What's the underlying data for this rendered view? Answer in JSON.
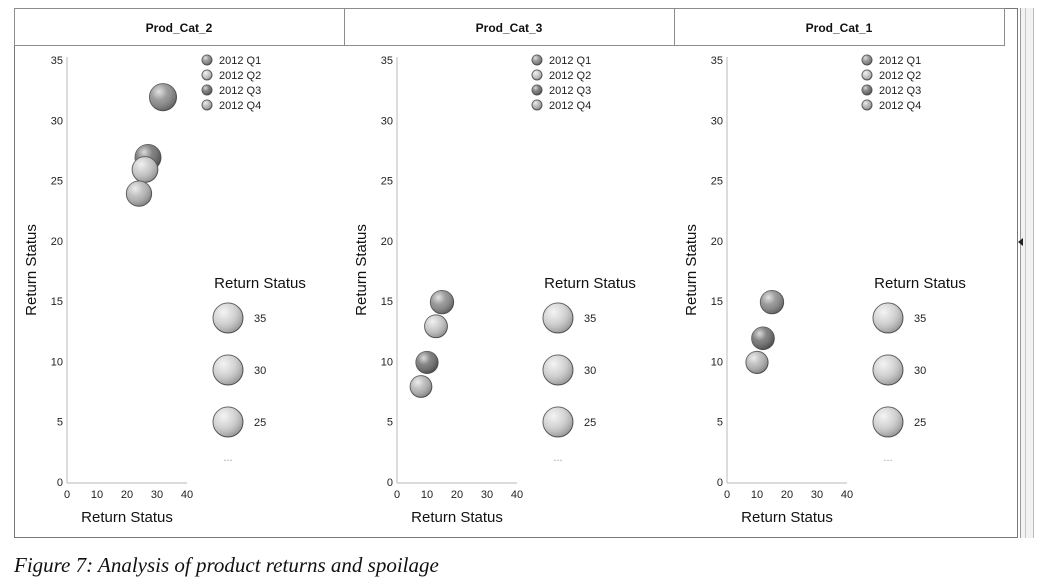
{
  "caption": "Figure 7: Analysis of product returns and spoilage",
  "colors": {
    "q1": "#8a8a8a",
    "q2": "#c6c6c6",
    "q3": "#6e6e6e",
    "q4": "#b4b4b4",
    "size_legend": "#d2d2d2"
  },
  "chart_data": [
    {
      "type": "scatter",
      "panel_title": "Prod_Cat_2",
      "xlabel": "Return Status",
      "ylabel": "Return Status",
      "xlim": [
        0,
        40
      ],
      "ylim": [
        0,
        35
      ],
      "x_ticks": [
        "0",
        "10",
        "20",
        "30",
        "40"
      ],
      "y_ticks": [
        "0",
        "5",
        "10",
        "15",
        "20",
        "25",
        "30",
        "35"
      ],
      "legend": [
        "2012 Q1",
        "2012 Q2",
        "2012 Q3",
        "2012 Q4"
      ],
      "size_legend": {
        "title": "Return Status",
        "values": [
          "35",
          "30",
          "25"
        ],
        "more": "..."
      },
      "series": [
        {
          "name": "2012 Q1",
          "points": [
            {
              "x": 32,
              "y": 32,
              "size": 32
            }
          ]
        },
        {
          "name": "2012 Q2",
          "points": [
            {
              "x": 26,
              "y": 26,
              "size": 26
            }
          ]
        },
        {
          "name": "2012 Q3",
          "points": [
            {
              "x": 27,
              "y": 27,
              "size": 27
            }
          ]
        },
        {
          "name": "2012 Q4",
          "points": [
            {
              "x": 24,
              "y": 24,
              "size": 24
            }
          ]
        }
      ]
    },
    {
      "type": "scatter",
      "panel_title": "Prod_Cat_3",
      "xlabel": "Return Status",
      "ylabel": "Return Status",
      "xlim": [
        0,
        40
      ],
      "ylim": [
        0,
        35
      ],
      "x_ticks": [
        "0",
        "10",
        "20",
        "30",
        "40"
      ],
      "y_ticks": [
        "0",
        "5",
        "10",
        "15",
        "20",
        "25",
        "30",
        "35"
      ],
      "legend": [
        "2012 Q1",
        "2012 Q2",
        "2012 Q3",
        "2012 Q4"
      ],
      "size_legend": {
        "title": "Return Status",
        "values": [
          "35",
          "30",
          "25"
        ],
        "more": "..."
      },
      "series": [
        {
          "name": "2012 Q1",
          "points": [
            {
              "x": 15,
              "y": 15,
              "size": 15
            }
          ]
        },
        {
          "name": "2012 Q2",
          "points": [
            {
              "x": 13,
              "y": 13,
              "size": 13
            }
          ]
        },
        {
          "name": "2012 Q3",
          "points": [
            {
              "x": 10,
              "y": 10,
              "size": 10
            }
          ]
        },
        {
          "name": "2012 Q4",
          "points": [
            {
              "x": 8,
              "y": 8,
              "size": 8
            }
          ]
        }
      ]
    },
    {
      "type": "scatter",
      "panel_title": "Prod_Cat_1",
      "xlabel": "Return Status",
      "ylabel": "Return Status",
      "xlim": [
        0,
        40
      ],
      "ylim": [
        0,
        35
      ],
      "x_ticks": [
        "0",
        "10",
        "20",
        "30",
        "40"
      ],
      "y_ticks": [
        "0",
        "5",
        "10",
        "15",
        "20",
        "25",
        "30",
        "35"
      ],
      "legend": [
        "2012 Q1",
        "2012 Q2",
        "2012 Q3",
        "2012 Q4"
      ],
      "size_legend": {
        "title": "Return Status",
        "values": [
          "35",
          "30",
          "25"
        ],
        "more": "..."
      },
      "series": [
        {
          "name": "2012 Q1",
          "points": [
            {
              "x": 15,
              "y": 15,
              "size": 15
            }
          ]
        },
        {
          "name": "2012 Q3",
          "points": [
            {
              "x": 12,
              "y": 12,
              "size": 12
            }
          ]
        },
        {
          "name": "2012 Q4",
          "points": [
            {
              "x": 10,
              "y": 10,
              "size": 10
            }
          ]
        }
      ]
    }
  ]
}
